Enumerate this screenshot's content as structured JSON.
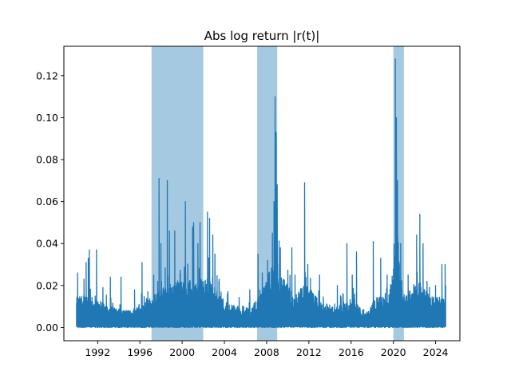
{
  "chart_data": {
    "type": "line",
    "title": "Abs log return |r(t)|",
    "xlabel": "",
    "ylabel": "",
    "xlim": [
      1988.8,
      2026.3
    ],
    "ylim": [
      -0.0063,
      0.134
    ],
    "x_ticks": [
      1992,
      1996,
      2000,
      2004,
      2008,
      2012,
      2016,
      2020,
      2024
    ],
    "y_ticks": [
      0.0,
      0.02,
      0.04,
      0.06,
      0.08,
      0.1,
      0.12
    ],
    "y_tick_labels": [
      "0.00",
      "0.02",
      "0.04",
      "0.06",
      "0.08",
      "0.10",
      "0.12"
    ],
    "grid": false,
    "legend": "none",
    "line_color": "#1f77b4",
    "shade_color": "#a6c9e2",
    "shaded_periods": [
      {
        "start": 1997.1,
        "end": 2002.0
      },
      {
        "start": 2007.1,
        "end": 2009.0
      },
      {
        "start": 2020.0,
        "end": 2021.0
      }
    ],
    "series_range": {
      "start": 1990.0,
      "end": 2024.95
    },
    "spikes": [
      {
        "x": 1990.1,
        "y": 0.026
      },
      {
        "x": 1990.7,
        "y": 0.023
      },
      {
        "x": 1990.9,
        "y": 0.031
      },
      {
        "x": 1991.1,
        "y": 0.033
      },
      {
        "x": 1991.2,
        "y": 0.037
      },
      {
        "x": 1991.9,
        "y": 0.037
      },
      {
        "x": 1992.5,
        "y": 0.019
      },
      {
        "x": 1993.2,
        "y": 0.024
      },
      {
        "x": 1994.2,
        "y": 0.024
      },
      {
        "x": 1995.5,
        "y": 0.018
      },
      {
        "x": 1996.2,
        "y": 0.031
      },
      {
        "x": 1997.3,
        "y": 0.025
      },
      {
        "x": 1997.8,
        "y": 0.071
      },
      {
        "x": 1998.0,
        "y": 0.04
      },
      {
        "x": 1998.6,
        "y": 0.07
      },
      {
        "x": 1998.8,
        "y": 0.046
      },
      {
        "x": 1999.3,
        "y": 0.046
      },
      {
        "x": 2000.3,
        "y": 0.06
      },
      {
        "x": 2001.0,
        "y": 0.048
      },
      {
        "x": 2001.1,
        "y": 0.05
      },
      {
        "x": 2001.5,
        "y": 0.04
      },
      {
        "x": 2001.7,
        "y": 0.05
      },
      {
        "x": 2002.4,
        "y": 0.055
      },
      {
        "x": 2002.6,
        "y": 0.052
      },
      {
        "x": 2002.9,
        "y": 0.044
      },
      {
        "x": 2003.1,
        "y": 0.035
      },
      {
        "x": 2003.5,
        "y": 0.023
      },
      {
        "x": 2004.3,
        "y": 0.016
      },
      {
        "x": 2006.4,
        "y": 0.018
      },
      {
        "x": 2007.2,
        "y": 0.035
      },
      {
        "x": 2007.6,
        "y": 0.026
      },
      {
        "x": 2008.1,
        "y": 0.032
      },
      {
        "x": 2008.7,
        "y": 0.06
      },
      {
        "x": 2008.8,
        "y": 0.11
      },
      {
        "x": 2008.9,
        "y": 0.093
      },
      {
        "x": 2009.0,
        "y": 0.068
      },
      {
        "x": 2009.3,
        "y": 0.038
      },
      {
        "x": 2010.4,
        "y": 0.038
      },
      {
        "x": 2010.7,
        "y": 0.025
      },
      {
        "x": 2011.6,
        "y": 0.069
      },
      {
        "x": 2011.9,
        "y": 0.03
      },
      {
        "x": 2013.0,
        "y": 0.025
      },
      {
        "x": 2014.7,
        "y": 0.02
      },
      {
        "x": 2015.6,
        "y": 0.04
      },
      {
        "x": 2016.1,
        "y": 0.025
      },
      {
        "x": 2016.5,
        "y": 0.036
      },
      {
        "x": 2018.1,
        "y": 0.041
      },
      {
        "x": 2018.8,
        "y": 0.033
      },
      {
        "x": 2019.4,
        "y": 0.025
      },
      {
        "x": 2020.2,
        "y": 0.128
      },
      {
        "x": 2020.3,
        "y": 0.1
      },
      {
        "x": 2020.4,
        "y": 0.07
      },
      {
        "x": 2020.7,
        "y": 0.04
      },
      {
        "x": 2021.4,
        "y": 0.025
      },
      {
        "x": 2022.2,
        "y": 0.044
      },
      {
        "x": 2022.5,
        "y": 0.054
      },
      {
        "x": 2022.8,
        "y": 0.04
      },
      {
        "x": 2023.2,
        "y": 0.022
      },
      {
        "x": 2024.0,
        "y": 0.02
      },
      {
        "x": 2024.6,
        "y": 0.03
      },
      {
        "x": 2024.9,
        "y": 0.03
      }
    ],
    "volatility_profile": [
      {
        "x": 1990.0,
        "level": 0.009
      },
      {
        "x": 1991.0,
        "level": 0.01
      },
      {
        "x": 1992.0,
        "level": 0.008
      },
      {
        "x": 1993.5,
        "level": 0.006
      },
      {
        "x": 1995.0,
        "level": 0.005
      },
      {
        "x": 1996.5,
        "level": 0.008
      },
      {
        "x": 1997.5,
        "level": 0.01
      },
      {
        "x": 1998.5,
        "level": 0.013
      },
      {
        "x": 2000.0,
        "level": 0.014
      },
      {
        "x": 2001.5,
        "level": 0.014
      },
      {
        "x": 2002.5,
        "level": 0.015
      },
      {
        "x": 2003.5,
        "level": 0.01
      },
      {
        "x": 2004.5,
        "level": 0.007
      },
      {
        "x": 2006.5,
        "level": 0.006
      },
      {
        "x": 2007.5,
        "level": 0.01
      },
      {
        "x": 2008.8,
        "level": 0.022
      },
      {
        "x": 2009.5,
        "level": 0.015
      },
      {
        "x": 2010.5,
        "level": 0.01
      },
      {
        "x": 2011.7,
        "level": 0.013
      },
      {
        "x": 2013.0,
        "level": 0.008
      },
      {
        "x": 2014.5,
        "level": 0.006
      },
      {
        "x": 2016.0,
        "level": 0.009
      },
      {
        "x": 2017.5,
        "level": 0.004
      },
      {
        "x": 2018.5,
        "level": 0.01
      },
      {
        "x": 2019.5,
        "level": 0.008
      },
      {
        "x": 2020.3,
        "level": 0.025
      },
      {
        "x": 2021.0,
        "level": 0.01
      },
      {
        "x": 2022.5,
        "level": 0.014
      },
      {
        "x": 2023.5,
        "level": 0.009
      },
      {
        "x": 2024.95,
        "level": 0.009
      }
    ]
  }
}
